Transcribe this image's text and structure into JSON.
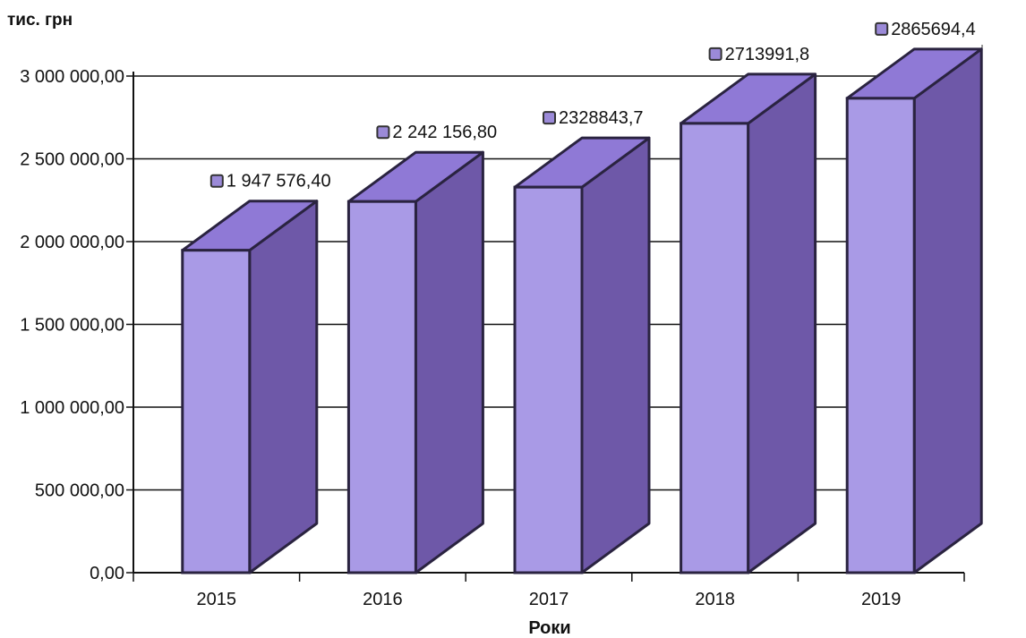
{
  "chart_data": {
    "type": "bar",
    "ylabel": "тис. грн",
    "xlabel": "Роки",
    "categories": [
      "2015",
      "2016",
      "2017",
      "2018",
      "2019"
    ],
    "values": [
      1947576.4,
      2242156.8,
      2328843.7,
      2713991.8,
      2865694.4
    ],
    "data_labels": [
      "1 947 576,40",
      "2 242 156,80",
      "2328843,7",
      "2713991,8",
      "2865694,4"
    ],
    "ylim": [
      0,
      3000000
    ],
    "yticks": [
      0,
      500000,
      1000000,
      1500000,
      2000000,
      2500000,
      3000000
    ],
    "ytick_labels": [
      "0,00",
      "500 000,00",
      "1 000 000,00",
      "1 500 000,00",
      "2 000 000,00",
      "2 500 000,00",
      "3 000 000,00"
    ],
    "grid": true,
    "style": "3d-column",
    "colors": {
      "front": "#a99ae6",
      "side": "#6e58a8",
      "top": "#8f79d6",
      "outline": "#2a2340",
      "grid": "#111111"
    }
  }
}
